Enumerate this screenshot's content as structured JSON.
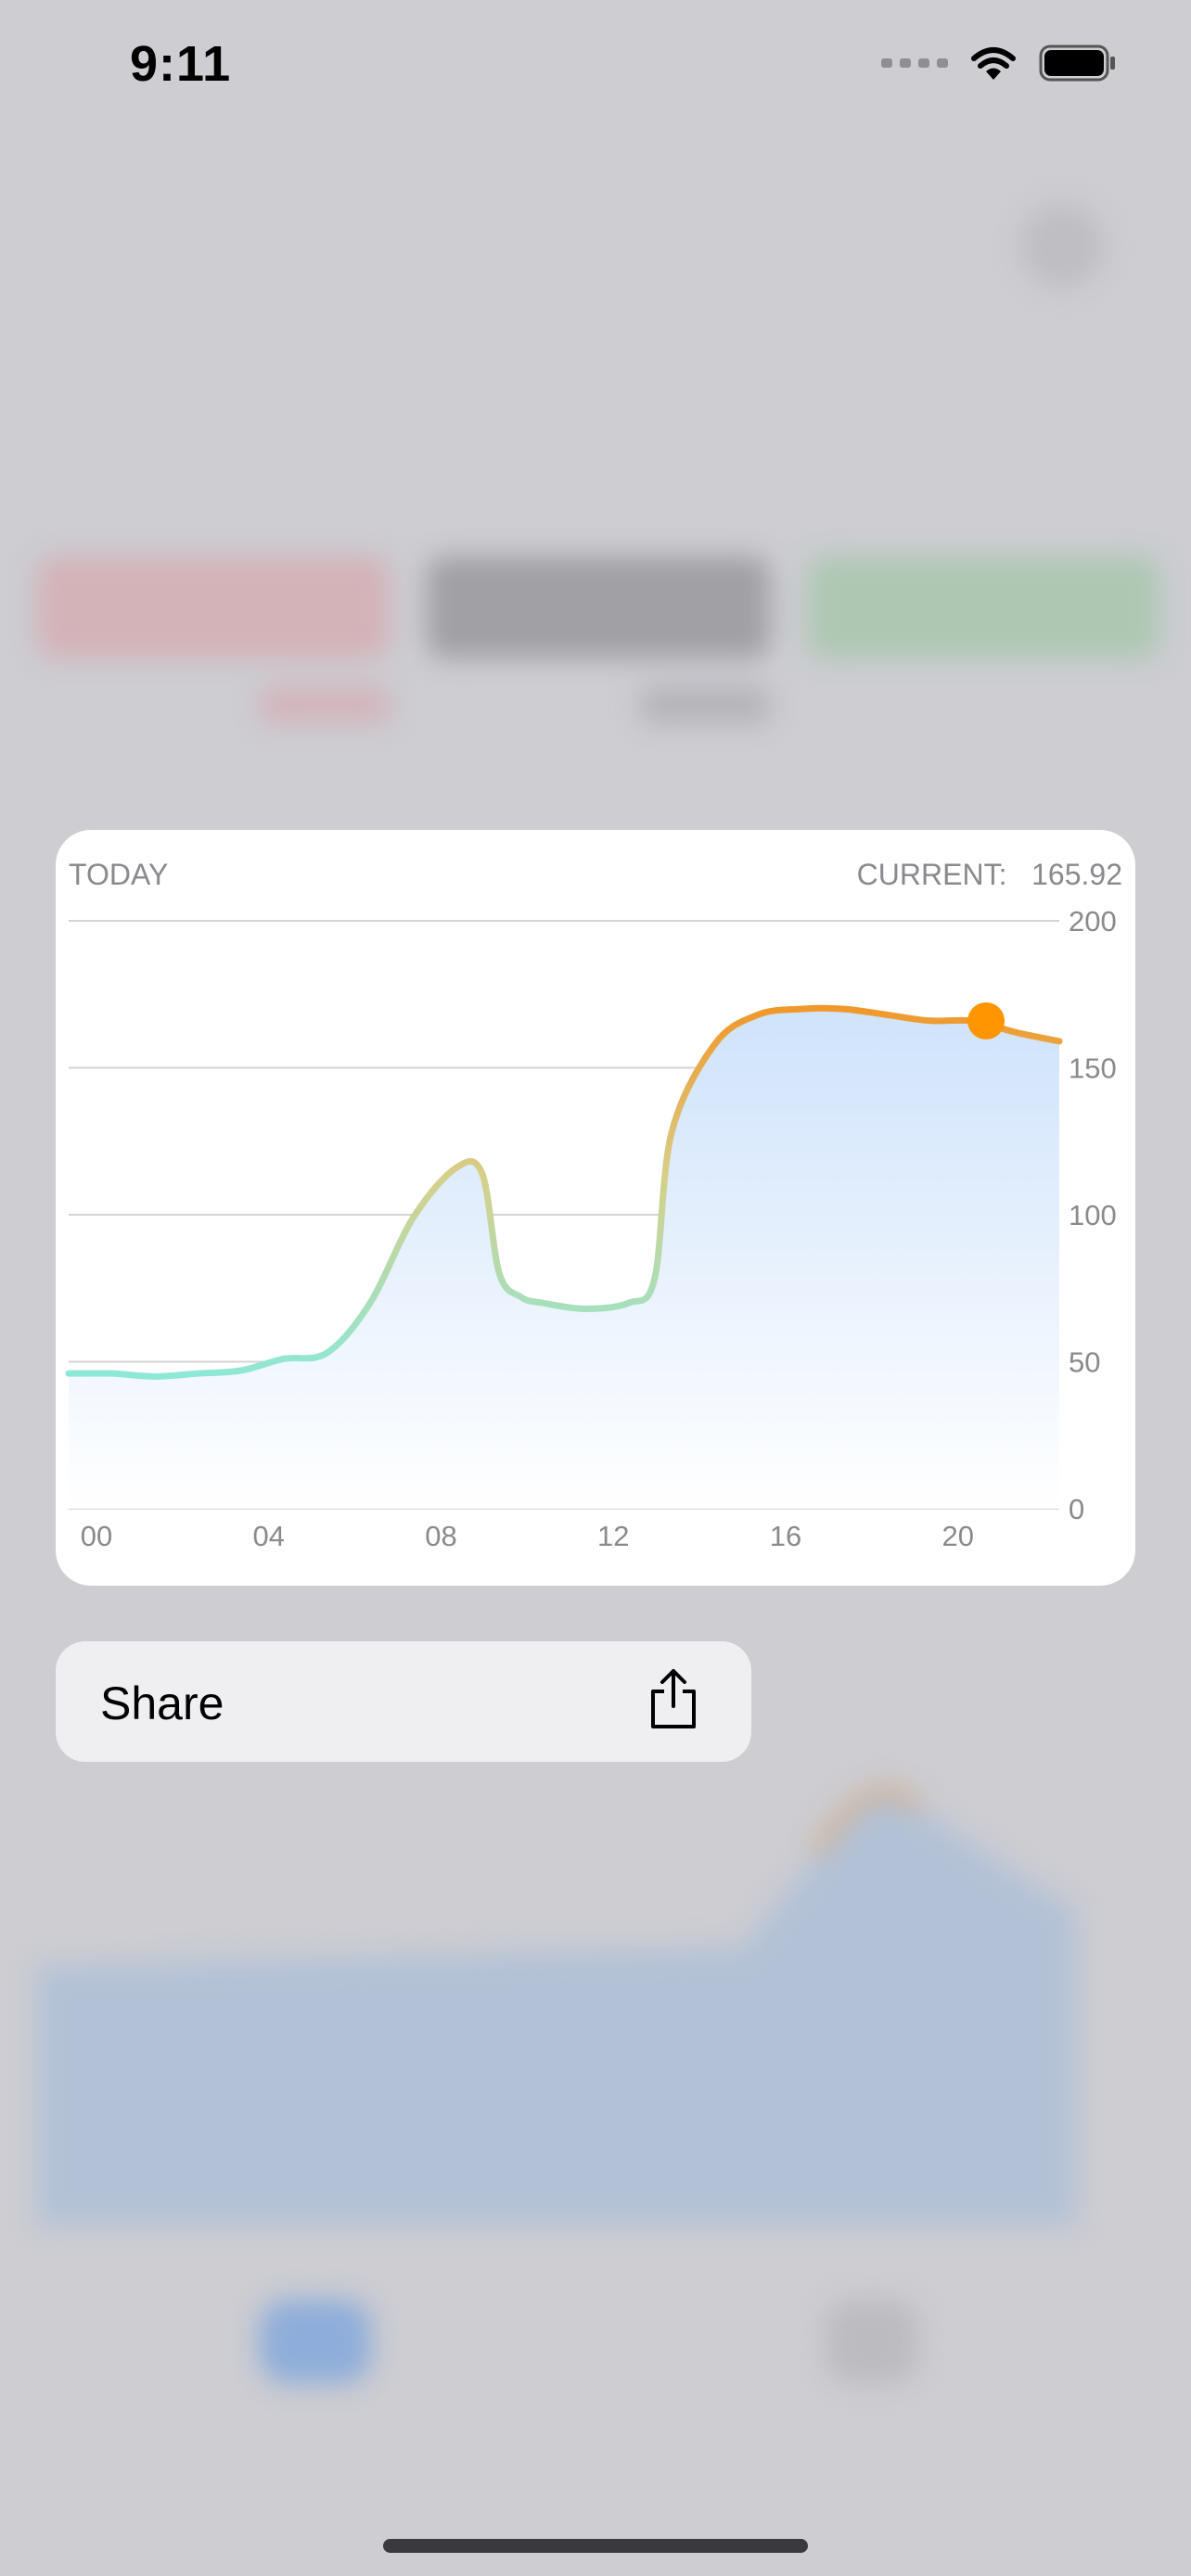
{
  "status_bar": {
    "time": "9:11"
  },
  "card": {
    "period_label": "TODAY",
    "current_label": "CURRENT:",
    "current_value": "165.92"
  },
  "share_menu": {
    "label": "Share",
    "icon": "share-icon"
  },
  "colors": {
    "line_low": "#8ee8d6",
    "line_high": "#f0982a",
    "area": "#cfe3fb",
    "marker": "#ff9500"
  },
  "chart_data": {
    "type": "area",
    "title": "",
    "xlabel": "",
    "ylabel": "",
    "x_ticks": [
      "00",
      "04",
      "08",
      "12",
      "16",
      "20"
    ],
    "y_ticks": [
      0,
      50,
      100,
      150,
      200
    ],
    "xlim": [
      0,
      23
    ],
    "ylim": [
      0,
      200
    ],
    "grid": true,
    "series": [
      {
        "x": [
          0,
          1,
          2,
          3,
          4,
          5,
          6,
          7,
          8,
          9,
          9.6,
          10,
          10.5,
          11,
          12,
          13,
          13.6,
          14,
          15,
          16,
          17,
          18,
          19,
          20,
          21,
          22,
          23
        ],
        "y": [
          46,
          46,
          45,
          46,
          47,
          51,
          53,
          70,
          99,
          116,
          114,
          80,
          72,
          70,
          68,
          70,
          78,
          128,
          158,
          168,
          170,
          170,
          168,
          166,
          165.92,
          162,
          159
        ]
      }
    ],
    "marker": {
      "x": 21.3,
      "y": 165.92
    }
  }
}
